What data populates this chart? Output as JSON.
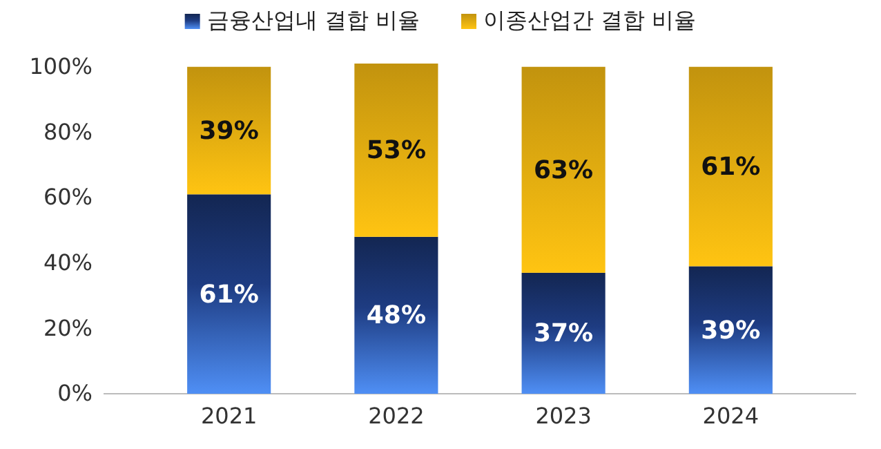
{
  "chart_data": {
    "type": "bar",
    "stacked": true,
    "categories": [
      "2021",
      "2022",
      "2023",
      "2024"
    ],
    "series": [
      {
        "name": "금융산업내 결합 비율",
        "color": "#1e3c82",
        "values": [
          61,
          48,
          37,
          39
        ],
        "value_labels": [
          "61%",
          "48%",
          "37%",
          "39%"
        ]
      },
      {
        "name": "이종산업간 결합 비율",
        "color": "#e0aa10",
        "values": [
          39,
          53,
          63,
          61
        ],
        "value_labels": [
          "39%",
          "53%",
          "63%",
          "61%"
        ]
      }
    ],
    "ylim": [
      0,
      101
    ],
    "yticks": [
      {
        "value": 0,
        "label": "0%"
      },
      {
        "value": 20,
        "label": "20%"
      },
      {
        "value": 40,
        "label": "40%"
      },
      {
        "value": 60,
        "label": "60%"
      },
      {
        "value": 80,
        "label": "80%"
      },
      {
        "value": 100,
        "label": "100%"
      }
    ],
    "legend": "top",
    "grid": false
  }
}
